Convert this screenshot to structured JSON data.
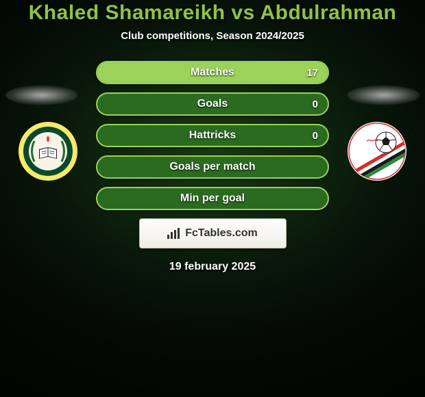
{
  "title": {
    "text": "Khaled Shamareikh vs Abdulrahman",
    "color": "#8fc24a",
    "fontsize": 30
  },
  "subtitle": {
    "text": "Club competitions, Season 2024/2025",
    "fontsize": 15
  },
  "bars": {
    "track_color": "#2a6b20",
    "border_color": "#9bd35a",
    "fill_color": "#9bd35a",
    "label_fontsize": 16,
    "value_fontsize": 15,
    "items": [
      {
        "label": "Matches",
        "left": "",
        "right": "17",
        "left_pct": 0,
        "right_pct": 100
      },
      {
        "label": "Goals",
        "left": "",
        "right": "0",
        "left_pct": 0,
        "right_pct": 0
      },
      {
        "label": "Hattricks",
        "left": "",
        "right": "0",
        "left_pct": 0,
        "right_pct": 0
      },
      {
        "label": "Goals per match",
        "left": "",
        "right": "",
        "left_pct": 0,
        "right_pct": 0
      },
      {
        "label": "Min per goal",
        "left": "",
        "right": "",
        "left_pct": 0,
        "right_pct": 0
      }
    ]
  },
  "crest_left": {
    "outer": "#f7e96a",
    "ring": "#0a4a2a",
    "inner": "#f7f3e8",
    "flame": "#e13b2a",
    "book": "#1a1a1a"
  },
  "crest_right": {
    "outer": "#ffffff",
    "ball": "#ffffff",
    "ball_panel": "#1a1a1a",
    "stripes": [
      "#d82b2b",
      "#1a1a1a",
      "#2a8a3a",
      "#ffffff"
    ]
  },
  "footer": {
    "brand": "FcTables.com",
    "fontsize": 16,
    "icon_color": "#333333"
  },
  "date": {
    "text": "19 february 2025",
    "fontsize": 16
  }
}
